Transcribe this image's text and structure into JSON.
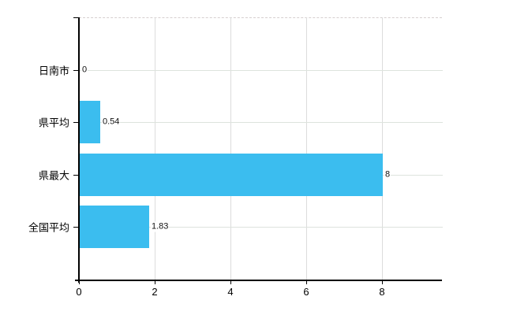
{
  "chart_data": {
    "type": "bar",
    "orientation": "horizontal",
    "title": "",
    "categories": [
      "日南市",
      "県平均",
      "県最大",
      "全国平均"
    ],
    "values": [
      0,
      0.54,
      8,
      1.83
    ],
    "value_labels": [
      "0",
      "0.54",
      "8",
      "1.83"
    ],
    "x_tick_labels": [
      "0",
      "2",
      "4",
      "6",
      "8"
    ],
    "x_tick_values": [
      0,
      2,
      4,
      6,
      8
    ],
    "xlim": [
      0,
      9.58
    ],
    "grid": true,
    "legend_visible": false,
    "colors": {
      "bar": "#3bbdef",
      "axis": "#000000",
      "grid_vertical": "#dcdcdc",
      "grid_horizontal": "#dde3dd",
      "top_border": "#d6cfcf",
      "text": "#000000"
    }
  }
}
